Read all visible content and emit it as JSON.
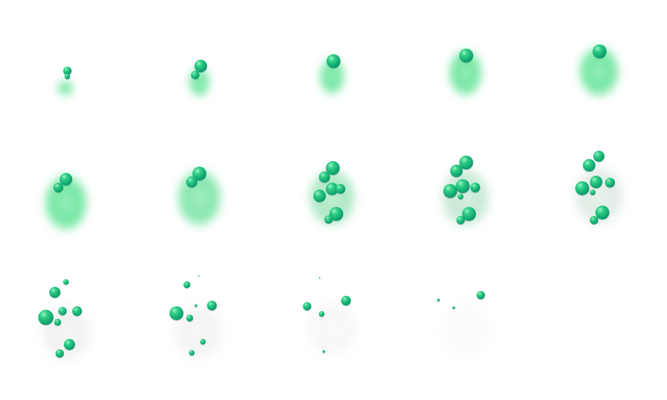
{
  "sprite_sheet": {
    "columns": 5,
    "rows": 3,
    "frame_count": 14,
    "colors": {
      "background": "#ffffff",
      "smoke_green": "#4fe08a",
      "smoke_gray": "#cfd3d1",
      "bubble_light": "#2fcf86",
      "bubble_dark": "#0b7a66"
    },
    "frames": [
      {
        "smoke_green": 1.0,
        "smoke_opacity": 0.9
      },
      {
        "smoke_green": 1.0,
        "smoke_opacity": 0.9
      },
      {
        "smoke_green": 1.0,
        "smoke_opacity": 0.9
      },
      {
        "smoke_green": 1.0,
        "smoke_opacity": 0.9
      },
      {
        "smoke_green": 1.0,
        "smoke_opacity": 0.9
      },
      {
        "smoke_green": 1.0,
        "smoke_opacity": 0.9
      },
      {
        "smoke_green": 0.9,
        "smoke_opacity": 0.85
      },
      {
        "smoke_green": 0.6,
        "smoke_opacity": 0.75
      },
      {
        "smoke_green": 0.4,
        "smoke_opacity": 0.65
      },
      {
        "smoke_green": 0.15,
        "smoke_opacity": 0.5
      },
      {
        "smoke_green": 0.0,
        "smoke_opacity": 0.35
      },
      {
        "smoke_green": 0.0,
        "smoke_opacity": 0.28
      },
      {
        "smoke_green": 0.0,
        "smoke_opacity": 0.2
      },
      {
        "smoke_green": 0.0,
        "smoke_opacity": 0.1
      }
    ]
  }
}
